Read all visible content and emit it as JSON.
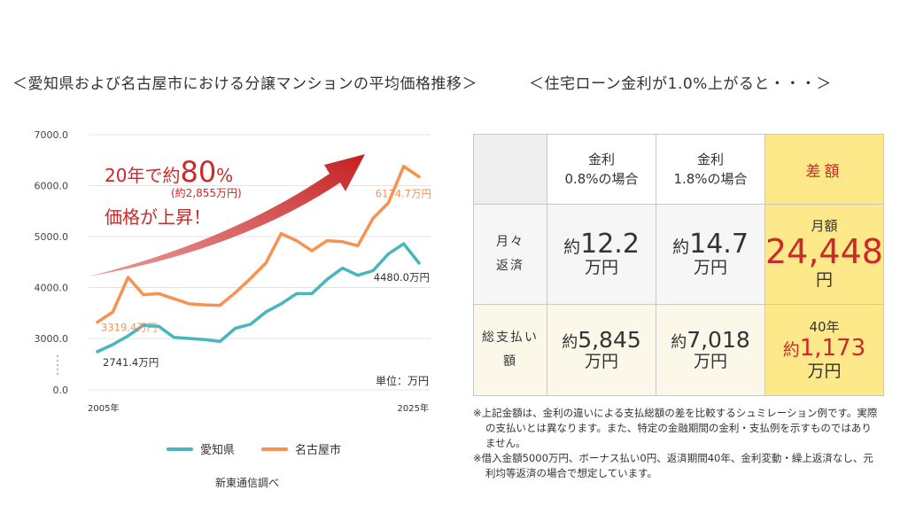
{
  "left_title": "＜愛知県および名古屋市における分譲マンションの平均価格推移＞",
  "right_title": "＜住宅ローン金利が1.0%上がると・・・＞",
  "chart_data": {
    "type": "line",
    "yticks": [
      "7000.0",
      "6000.0",
      "5000.0",
      "4000.0",
      "3000.0",
      "0.0"
    ],
    "xtick_start": "2005年",
    "xtick_end": "2025年",
    "unit_label": "単位：万円",
    "annotation_main": "20年で約80%",
    "annotation_main_prefix": "20年で約",
    "annotation_main_number": "80",
    "annotation_main_suffix": "%",
    "annotation_sub": "(約2,855万円)",
    "annotation_rise": "価格が上昇！",
    "series": [
      {
        "name": "愛知県",
        "color": "#49b5bf",
        "values": [
          2741.4,
          2880,
          3050,
          3260,
          3240,
          3020,
          3000,
          2980,
          2940,
          3200,
          3280,
          3520,
          3680,
          3880,
          3880,
          4160,
          4380,
          4240,
          4330,
          4660,
          4860,
          4480.0
        ],
        "start_label": "2741.4万円",
        "end_label": "4480.0万円"
      },
      {
        "name": "名古屋市",
        "color": "#f69252",
        "values": [
          3319.4,
          3520,
          4200,
          3860,
          3880,
          3780,
          3680,
          3660,
          3650,
          3900,
          4180,
          4480,
          5060,
          4920,
          4720,
          4920,
          4900,
          4820,
          5360,
          5660,
          6380,
          6174.7
        ],
        "start_label": "3319.4万円",
        "end_label": "6174.7万円"
      }
    ],
    "legend_position": "bottom"
  },
  "source": "新東通信調べ",
  "table": {
    "col1": "金利",
    "col1_sub": "0.8%の場合",
    "col2": "金利",
    "col2_sub": "1.8%の場合",
    "col3": "差額",
    "row1_label_a": "月々",
    "row1_label_b": "返済",
    "row2_label_a": "総支払い",
    "row2_label_b": "額",
    "r1_c1_pre": "約",
    "r1_c1_val": "12.2",
    "r1_c1_unit": "万円",
    "r1_c2_pre": "約",
    "r1_c2_val": "14.7",
    "r1_c2_unit": "万円",
    "r1_c3_label": "月額",
    "r1_c3_val": "24,448",
    "r1_c3_unit": "円",
    "r2_c1_pre": "約",
    "r2_c1_val": "5,845",
    "r2_c1_unit": "万円",
    "r2_c2_pre": "約",
    "r2_c2_val": "7,018",
    "r2_c2_unit": "万円",
    "r2_c3_label": "40年",
    "r2_c3_pre": "約",
    "r2_c3_val": "1,173",
    "r2_c3_unit": "万円"
  },
  "notes": [
    "※上記金額は、金利の違いによる支払総額の差を比較するシュミレーション例です。実際の支払いとは異なります。また、特定の金融期間の金利・支払例を示すものではありません。",
    "※借入金額5000万円、ボーナス払い0円、返済期間40年、金利変動・繰上返済なし、元利均等返済の場合で想定しています。"
  ]
}
